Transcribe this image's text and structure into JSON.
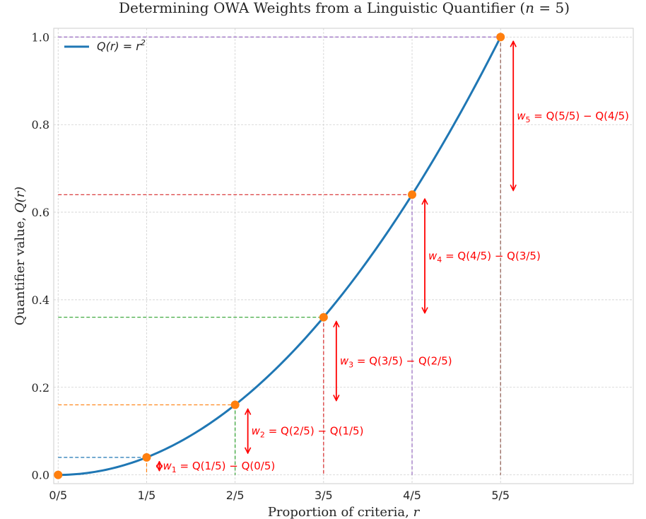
{
  "chart_data": {
    "type": "line",
    "title": "Determining OWA Weights from a Linguistic Quantifier (n = 5)",
    "title_prefix": "Determining OWA Weights from a Linguistic Quantifier (",
    "title_n": "n",
    "title_suffix": " = 5)",
    "xlabel_prefix": "Proportion of criteria, ",
    "xlabel_var": "r",
    "ylabel_prefix": "Quantifier value, ",
    "ylabel_var": "Q(r)",
    "xlim": [
      -0.01,
      1.3
    ],
    "ylim": [
      -0.02,
      1.02
    ],
    "x_ticks": [
      0,
      0.2,
      0.4,
      0.6,
      0.8,
      1.0
    ],
    "x_tick_labels": [
      "0/5",
      "1/5",
      "2/5",
      "3/5",
      "4/5",
      "5/5"
    ],
    "y_ticks": [
      0.0,
      0.2,
      0.4,
      0.6,
      0.8,
      1.0
    ],
    "y_tick_labels": [
      "0.0",
      "0.2",
      "0.4",
      "0.6",
      "0.8",
      "1.0"
    ],
    "grid": true,
    "legend": {
      "position": "top-left",
      "label": "Q(r) = r²",
      "label_q": "Q(r) = r",
      "label_exp": "2"
    },
    "series": [
      {
        "name": "Q(r) = r²",
        "function": "r^2",
        "x_range": [
          0,
          1
        ],
        "color": "#1f77b4"
      }
    ],
    "points": {
      "x": [
        0,
        0.2,
        0.4,
        0.6,
        0.8,
        1.0
      ],
      "y": [
        0.0,
        0.04,
        0.16,
        0.36,
        0.64,
        1.0
      ],
      "color": "#ff7f0e"
    },
    "guide_colors": [
      "#1f77b4",
      "#ff7f0e",
      "#2ca02c",
      "#d62728",
      "#9467bd",
      "#8c564b",
      "#e377c2",
      "#7f7f7f",
      "#bcbd22"
    ],
    "weights": [
      {
        "w": "w",
        "sub": "1",
        "expr": " = Q(1/5) − Q(0/5)",
        "from": 0.0,
        "to": 0.04
      },
      {
        "w": "w",
        "sub": "2",
        "expr": " = Q(2/5) − Q(1/5)",
        "from": 0.04,
        "to": 0.16
      },
      {
        "w": "w",
        "sub": "3",
        "expr": " = Q(3/5) − Q(2/5)",
        "from": 0.16,
        "to": 0.36
      },
      {
        "w": "w",
        "sub": "4",
        "expr": " = Q(4/5) − Q(3/5)",
        "from": 0.36,
        "to": 0.64
      },
      {
        "w": "w",
        "sub": "5",
        "expr": " = Q(5/5) − Q(4/5)",
        "from": 0.64,
        "to": 1.0
      }
    ],
    "annotation_color": "#ff0000"
  }
}
